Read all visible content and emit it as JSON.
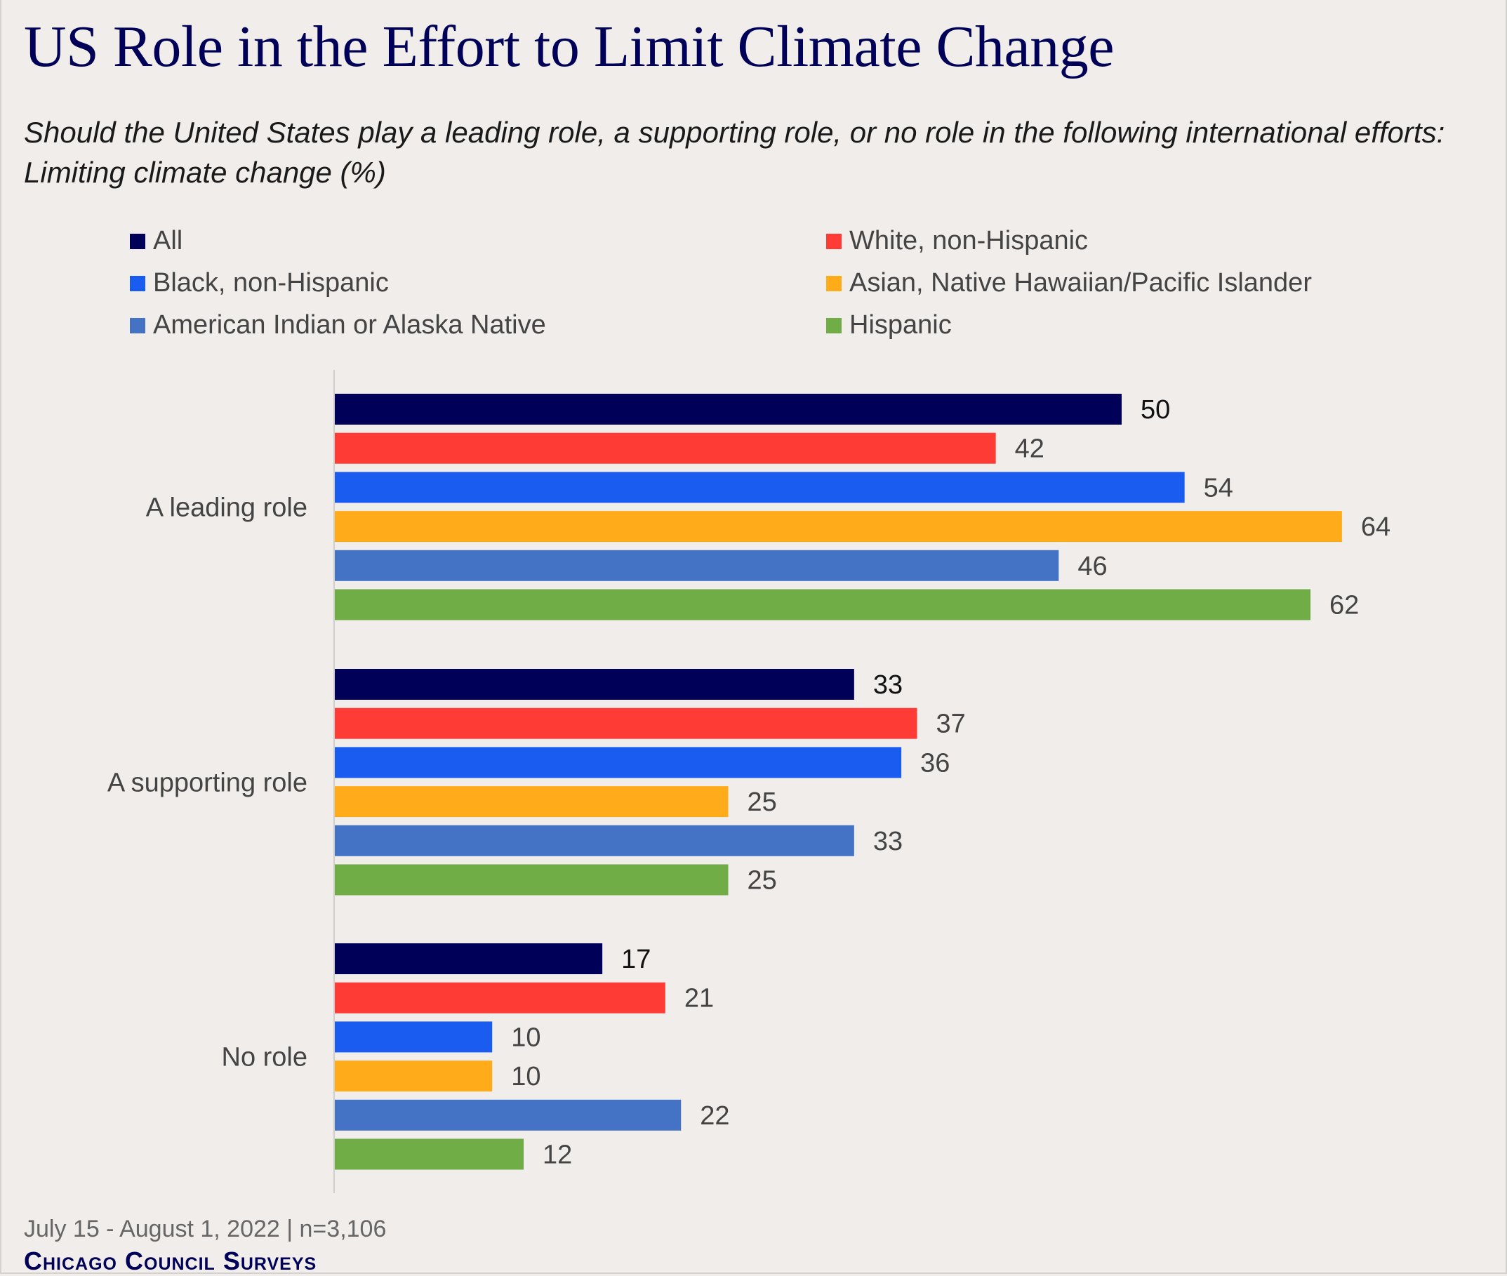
{
  "title": "US Role in the Effort to Limit Climate Change",
  "subtitle": "Should the United States play a leading role, a supporting role, or no role in the following international efforts: Limiting climate change (%)",
  "footer": {
    "date_sample": "July 15 - August 1, 2022 | n=3,106",
    "brand": "Chicago Council Surveys"
  },
  "chart_data": {
    "type": "bar",
    "orientation": "horizontal",
    "title": "US Role in the Effort to Limit Climate Change",
    "xlabel": "",
    "ylabel": "",
    "xlim": [
      0,
      70
    ],
    "grid": false,
    "legend_placement": "top",
    "categories": [
      "A leading role",
      "A supporting role",
      "No role"
    ],
    "series": [
      {
        "name": "All",
        "color": "#000058",
        "values": [
          50,
          33,
          17
        ]
      },
      {
        "name": "White, non-Hispanic",
        "color": "#ff3b35",
        "values": [
          42,
          37,
          21
        ]
      },
      {
        "name": "Black, non-Hispanic",
        "color": "#1a5cf0",
        "values": [
          54,
          36,
          10
        ]
      },
      {
        "name": "Asian, Native Hawaiian/Pacific Islander",
        "color": "#ffab1a",
        "values": [
          64,
          25,
          10
        ]
      },
      {
        "name": "American Indian or Alaska Native",
        "color": "#4472c4",
        "values": [
          46,
          33,
          22
        ]
      },
      {
        "name": "Hispanic",
        "color": "#70ad47",
        "values": [
          62,
          25,
          12
        ]
      }
    ]
  }
}
